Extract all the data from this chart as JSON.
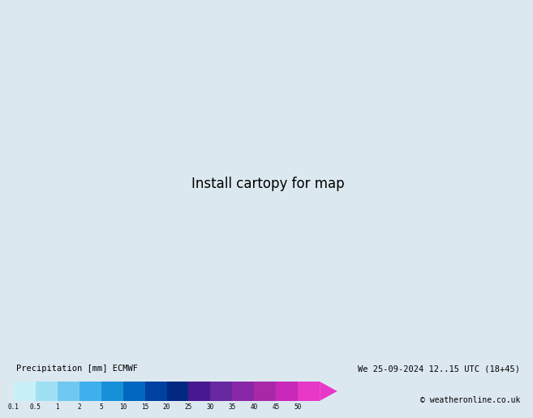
{
  "title_left": "Precipitation [mm] ECMWF",
  "title_right": "We 25-09-2024 12..15 UTC (18+45)",
  "copyright": "© weatheronline.co.uk",
  "colorbar_labels": [
    "0.1",
    "0.5",
    "1",
    "2",
    "5",
    "10",
    "15",
    "20",
    "25",
    "30",
    "35",
    "40",
    "45",
    "50"
  ],
  "colorbar_colors": [
    "#c8f0f8",
    "#a0e0f4",
    "#70c8f0",
    "#40b0ec",
    "#1890d8",
    "#0068c0",
    "#0040a0",
    "#002880",
    "#481890",
    "#6828a0",
    "#8828a8",
    "#a828a8",
    "#c828b8",
    "#e838c8"
  ],
  "ocean_color": "#dce8f0",
  "land_color": "#c8c8c8",
  "land_green_color": "#c8d8a0",
  "bg_color": "#dce8f0",
  "blue_line": "#1414c8",
  "red_line": "#cc1414",
  "prec_light": "#b0dff0",
  "prec_mid": "#70c0e8",
  "prec_dark": "#3090d0"
}
